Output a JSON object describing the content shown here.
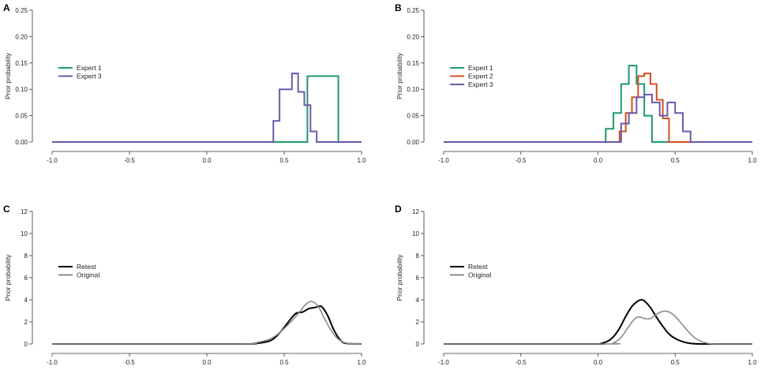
{
  "chart_data": [
    {
      "panel": "A",
      "type": "line",
      "step": true,
      "ylabel": "Prior probability",
      "xlim": [
        -1.0,
        1.0
      ],
      "ylim": [
        0,
        0.25
      ],
      "x_ticks": [
        "-1.0",
        "-0.5",
        "0.0",
        "0.5",
        "1.0"
      ],
      "y_ticks": [
        "0.00",
        "0.05",
        "0.10",
        "0.15",
        "0.20",
        "0.25"
      ],
      "legend": "upper-left",
      "series": [
        {
          "name": "Expert 1",
          "color": "#1e9a6e",
          "x": [
            -1.0,
            0.65,
            0.65,
            0.85,
            0.85,
            1.0
          ],
          "y": [
            0,
            0,
            0.125,
            0.125,
            0,
            0
          ]
        },
        {
          "name": "Expert 3",
          "color": "#6a5aa8",
          "x": [
            -1.0,
            0.43,
            0.43,
            0.47,
            0.47,
            0.55,
            0.55,
            0.59,
            0.59,
            0.63,
            0.63,
            0.67,
            0.67,
            0.71,
            0.71,
            0.75,
            0.75,
            1.0
          ],
          "y": [
            0,
            0,
            0.04,
            0.04,
            0.1,
            0.1,
            0.13,
            0.13,
            0.095,
            0.095,
            0.07,
            0.07,
            0.02,
            0.02,
            0,
            0,
            0,
            0
          ]
        }
      ]
    },
    {
      "panel": "B",
      "type": "line",
      "step": true,
      "ylabel": "Prior probability",
      "xlim": [
        -1.0,
        1.0
      ],
      "ylim": [
        0,
        0.25
      ],
      "x_ticks": [
        "-1.0",
        "-0.5",
        "0.0",
        "0.5",
        "1.0"
      ],
      "y_ticks": [
        "0.00",
        "0.05",
        "0.10",
        "0.15",
        "0.20",
        "0.25"
      ],
      "legend": "upper-left",
      "series": [
        {
          "name": "Expert 1",
          "color": "#1e9a6e",
          "x": [
            -1.0,
            0.05,
            0.05,
            0.1,
            0.1,
            0.15,
            0.15,
            0.2,
            0.2,
            0.25,
            0.25,
            0.3,
            0.3,
            0.35,
            0.35,
            0.4,
            0.4,
            1.0
          ],
          "y": [
            0,
            0,
            0.025,
            0.025,
            0.055,
            0.055,
            0.11,
            0.11,
            0.145,
            0.145,
            0.11,
            0.11,
            0.05,
            0.05,
            0,
            0,
            0,
            0
          ]
        },
        {
          "name": "Expert 2",
          "color": "#d2501e",
          "x": [
            -1.0,
            0.14,
            0.14,
            0.18,
            0.18,
            0.22,
            0.22,
            0.26,
            0.26,
            0.3,
            0.3,
            0.34,
            0.34,
            0.38,
            0.38,
            0.42,
            0.42,
            0.46,
            0.46,
            1.0
          ],
          "y": [
            0,
            0,
            0.02,
            0.02,
            0.055,
            0.055,
            0.085,
            0.085,
            0.125,
            0.125,
            0.13,
            0.13,
            0.11,
            0.11,
            0.08,
            0.08,
            0.045,
            0.045,
            0,
            0
          ]
        },
        {
          "name": "Expert 3",
          "color": "#6a5aa8",
          "x": [
            -1.0,
            0.15,
            0.15,
            0.2,
            0.2,
            0.25,
            0.25,
            0.3,
            0.3,
            0.35,
            0.35,
            0.4,
            0.4,
            0.45,
            0.45,
            0.5,
            0.5,
            0.55,
            0.55,
            0.6,
            0.6,
            1.0
          ],
          "y": [
            0,
            0,
            0.035,
            0.035,
            0.055,
            0.055,
            0.085,
            0.085,
            0.09,
            0.09,
            0.075,
            0.075,
            0.05,
            0.05,
            0.075,
            0.075,
            0.055,
            0.055,
            0.02,
            0.02,
            0,
            0
          ]
        }
      ]
    },
    {
      "panel": "C",
      "type": "line",
      "step": false,
      "ylabel": "Prior probability",
      "xlim": [
        -1.0,
        1.0
      ],
      "ylim": [
        0,
        12
      ],
      "x_ticks": [
        "-1.0",
        "-0.5",
        "0.0",
        "0.5",
        "1.0"
      ],
      "y_ticks": [
        "0",
        "2",
        "4",
        "6",
        "8",
        "10",
        "12"
      ],
      "legend": "middle-left",
      "series": [
        {
          "name": "Retest",
          "color": "#000000",
          "x": [
            -1.0,
            0.2,
            0.3,
            0.4,
            0.45,
            0.5,
            0.55,
            0.58,
            0.62,
            0.66,
            0.7,
            0.74,
            0.78,
            0.82,
            0.86,
            0.9,
            1.0
          ],
          "y": [
            0,
            0,
            0.03,
            0.25,
            0.7,
            1.5,
            2.4,
            2.8,
            2.9,
            3.2,
            3.3,
            3.4,
            2.6,
            1.3,
            0.4,
            0.05,
            0
          ]
        },
        {
          "name": "Original",
          "color": "#8c8c8c",
          "x": [
            -1.0,
            0.2,
            0.3,
            0.4,
            0.45,
            0.5,
            0.55,
            0.6,
            0.64,
            0.68,
            0.72,
            0.76,
            0.8,
            0.84,
            0.88,
            0.92,
            1.0
          ],
          "y": [
            0,
            0,
            0.08,
            0.4,
            0.8,
            1.4,
            2.1,
            2.9,
            3.6,
            3.85,
            3.4,
            2.3,
            1.3,
            0.55,
            0.18,
            0.04,
            0
          ]
        }
      ]
    },
    {
      "panel": "D",
      "type": "line",
      "step": false,
      "ylabel": "Prior probability",
      "xlim": [
        -1.0,
        1.0
      ],
      "ylim": [
        0,
        12
      ],
      "x_ticks": [
        "-1.0",
        "-0.5",
        "0.0",
        "0.5",
        "1.0"
      ],
      "y_ticks": [
        "0",
        "2",
        "4",
        "6",
        "8",
        "10",
        "12"
      ],
      "legend": "middle-left",
      "series": [
        {
          "name": "Retest",
          "color": "#000000",
          "x": [
            -1.0,
            -0.05,
            0.02,
            0.08,
            0.13,
            0.18,
            0.22,
            0.26,
            0.28,
            0.3,
            0.34,
            0.38,
            0.42,
            0.46,
            0.5,
            0.55,
            0.6,
            0.68,
            1.0
          ],
          "y": [
            0,
            0,
            0.05,
            0.4,
            1.2,
            2.5,
            3.4,
            3.9,
            4.0,
            3.9,
            3.3,
            2.4,
            1.6,
            0.9,
            0.5,
            0.2,
            0.05,
            0,
            0
          ]
        },
        {
          "name": "Original",
          "color": "#8c8c8c",
          "x": [
            -1.0,
            0.05,
            0.1,
            0.15,
            0.2,
            0.24,
            0.27,
            0.3,
            0.34,
            0.38,
            0.42,
            0.46,
            0.5,
            0.55,
            0.6,
            0.65,
            0.7,
            0.76,
            1.0
          ],
          "y": [
            0,
            0,
            0.1,
            0.6,
            1.6,
            2.3,
            2.45,
            2.3,
            2.3,
            2.7,
            2.95,
            2.9,
            2.5,
            1.7,
            0.9,
            0.35,
            0.1,
            0,
            0
          ]
        }
      ]
    }
  ]
}
